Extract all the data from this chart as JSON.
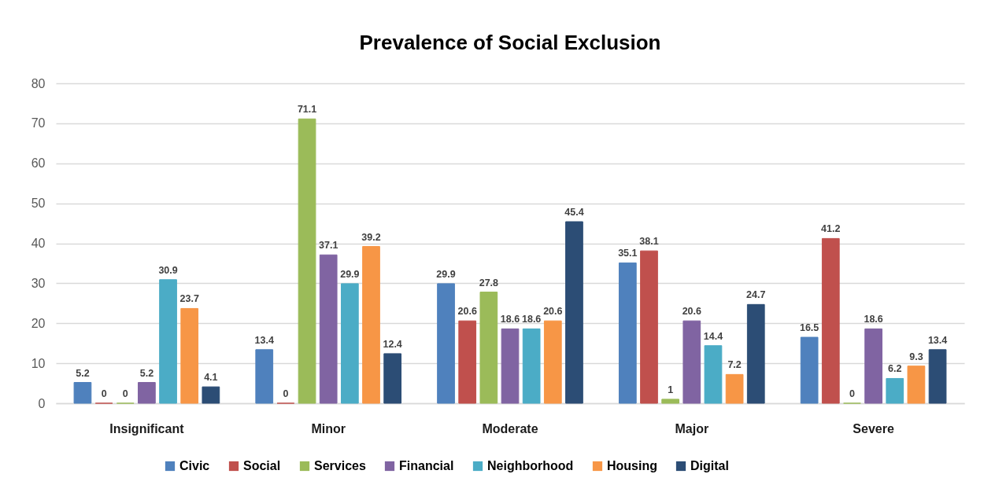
{
  "chart_data": {
    "type": "bar",
    "title": "Prevalence of Social Exclusion",
    "categories": [
      "Insignificant",
      "Minor",
      "Moderate",
      "Major",
      "Severe"
    ],
    "series": [
      {
        "name": "Civic",
        "color": "#4f81bd",
        "values": [
          5.2,
          13.4,
          29.9,
          35.1,
          16.5
        ]
      },
      {
        "name": "Social",
        "color": "#c0504d",
        "values": [
          0,
          0,
          20.6,
          38.1,
          41.2
        ]
      },
      {
        "name": "Services",
        "color": "#9bbb59",
        "values": [
          0,
          71.1,
          27.8,
          1,
          0
        ]
      },
      {
        "name": "Financial",
        "color": "#8064a2",
        "values": [
          5.2,
          37.1,
          18.6,
          20.6,
          18.6
        ]
      },
      {
        "name": "Neighborhood",
        "color": "#4bacc6",
        "values": [
          30.9,
          29.9,
          18.6,
          14.4,
          6.2
        ]
      },
      {
        "name": "Housing",
        "color": "#f79646",
        "values": [
          23.7,
          39.2,
          20.6,
          7.2,
          9.3
        ]
      },
      {
        "name": "Digital",
        "color": "#2c4d75",
        "values": [
          4.1,
          12.4,
          45.4,
          24.7,
          13.4
        ]
      }
    ],
    "ylim": [
      0,
      80
    ],
    "yticks": [
      0,
      10,
      20,
      30,
      40,
      50,
      60,
      70,
      80
    ],
    "grid": "y",
    "legend": "bottom",
    "data_labels": true
  }
}
